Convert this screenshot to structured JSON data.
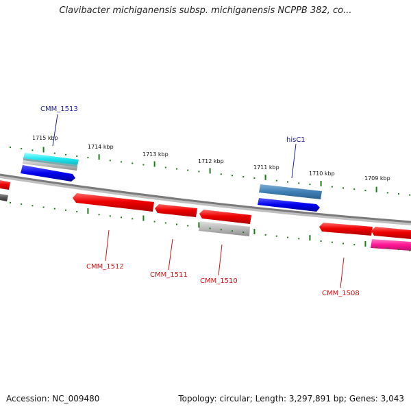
{
  "title": "Clavibacter michiganensis subsp. michiganensis NCPPB 382, co...",
  "footer": {
    "accession": "Accession: NC_009480",
    "summary": "Topology: circular; Length: 3,297,891 bp; Genes: 3,043"
  },
  "colors": {
    "tick": "#1a7a1a",
    "backbone": "#888888",
    "forward_label": "#1a1aa0",
    "reverse_label": "#d01010"
  },
  "ticks": [
    {
      "label": "1715 kbp"
    },
    {
      "label": "1714 kbp"
    },
    {
      "label": "1713 kbp"
    },
    {
      "label": "1712 kbp"
    },
    {
      "label": "1711 kbp"
    },
    {
      "label": "1710 kbp"
    },
    {
      "label": "1709 kbp"
    }
  ],
  "gene_labels": [
    {
      "text": "CMM_1513",
      "strand": "forward"
    },
    {
      "text": "hisC1",
      "strand": "forward"
    },
    {
      "text": "CMM_1512",
      "strand": "reverse"
    },
    {
      "text": "CMM_1511",
      "strand": "reverse"
    },
    {
      "text": "CMM_1510",
      "strand": "reverse"
    },
    {
      "text": "CMM_1508",
      "strand": "reverse"
    }
  ]
}
